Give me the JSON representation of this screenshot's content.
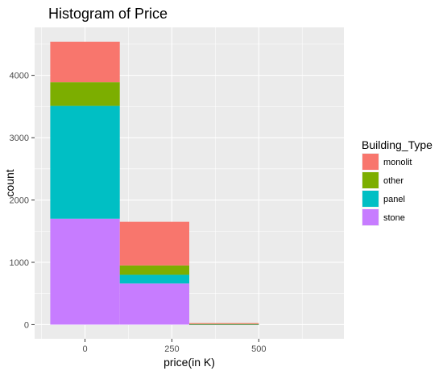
{
  "chart_data": {
    "type": "bar",
    "stacked": true,
    "histogram": true,
    "title": "Histogram of Price",
    "xlabel": "price(in K)",
    "ylabel": "count",
    "bins": [
      {
        "x_start": -100,
        "x_end": 100
      },
      {
        "x_start": 100,
        "x_end": 300
      },
      {
        "x_start": 300,
        "x_end": 500
      },
      {
        "x_start": 500,
        "x_end": 700
      }
    ],
    "series": [
      {
        "name": "stone",
        "color": "#C77CFF",
        "values": [
          1700,
          660,
          3,
          0
        ]
      },
      {
        "name": "panel",
        "color": "#00BFC4",
        "values": [
          1810,
          140,
          2,
          0
        ]
      },
      {
        "name": "other",
        "color": "#7CAE00",
        "values": [
          380,
          150,
          5,
          0
        ]
      },
      {
        "name": "monolit",
        "color": "#F8766D",
        "values": [
          650,
          700,
          15,
          0
        ]
      }
    ],
    "xlim": [
      -145,
      745
    ],
    "ylim": [
      -227,
      4770
    ],
    "x_ticks": [
      0,
      250,
      500
    ],
    "x_tick_labels": [
      "0",
      "250",
      "500"
    ],
    "y_ticks": [
      0,
      1000,
      2000,
      3000,
      4000
    ],
    "y_tick_labels": [
      "0",
      "1000",
      "2000",
      "3000",
      "4000"
    ],
    "grid": true,
    "legend": {
      "title": "Building_Type",
      "placement": "right",
      "entries": [
        "monolit",
        "other",
        "panel",
        "stone"
      ]
    }
  },
  "colors": {
    "panel_bg": "#EBEBEB",
    "grid_major": "#FFFFFF",
    "text_axis": "#4D4D4D"
  }
}
